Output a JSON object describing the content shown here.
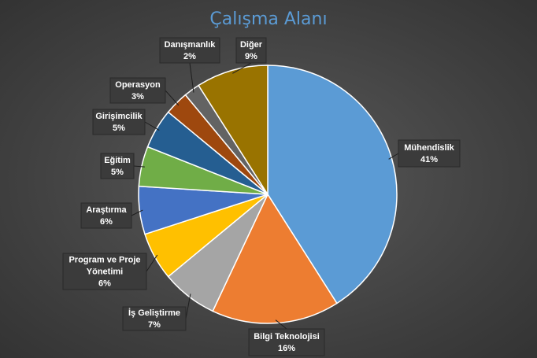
{
  "chart_data": {
    "type": "pie",
    "title": "Çalışma Alanı",
    "legend": "none",
    "slices": [
      {
        "label": "Mühendislik",
        "value": 41,
        "pct_label": "41%",
        "color": "#5b9bd5"
      },
      {
        "label": "Bilgi  Teknolojisi",
        "value": 16,
        "pct_label": "16%",
        "color": "#ed7d31"
      },
      {
        "label": "İş Geliştirme",
        "value": 7,
        "pct_label": "7%",
        "color": "#a5a5a5"
      },
      {
        "label": "Program ve Proje Yönetimi",
        "value": 6,
        "pct_label": "6%",
        "color": "#ffc000"
      },
      {
        "label": "Araştırma",
        "value": 6,
        "pct_label": "6%",
        "color": "#4472c4"
      },
      {
        "label": "Eğitim",
        "value": 5,
        "pct_label": "5%",
        "color": "#70ad47"
      },
      {
        "label": "Girişimcilik",
        "value": 5,
        "pct_label": "5%",
        "color": "#255e91"
      },
      {
        "label": "Operasyon",
        "value": 3,
        "pct_label": "3%",
        "color": "#9e480e"
      },
      {
        "label": "Danışmanlık",
        "value": 2,
        "pct_label": "2%",
        "color": "#636363"
      },
      {
        "label": "Diğer",
        "value": 9,
        "pct_label": "9%",
        "color": "#997300"
      }
    ]
  }
}
